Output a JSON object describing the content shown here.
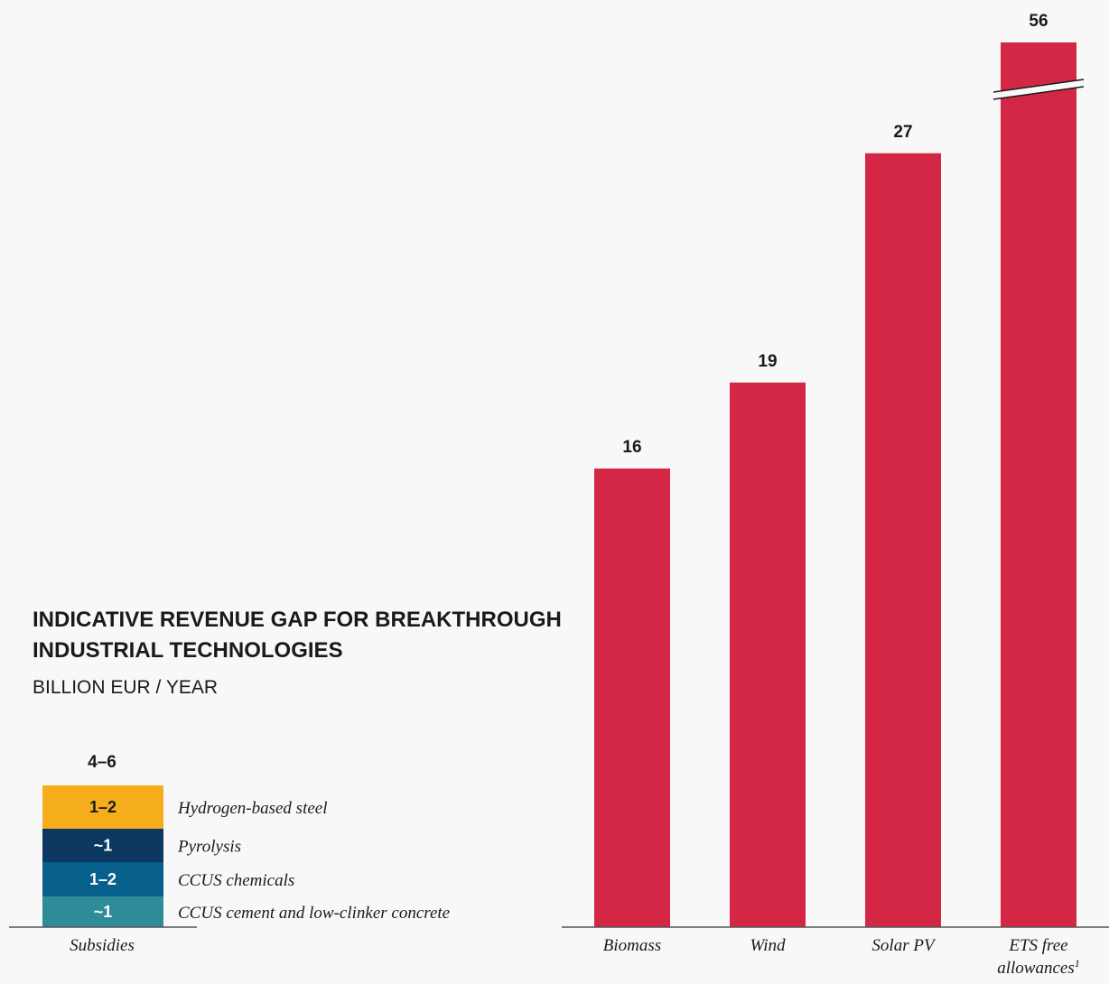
{
  "chart_data": {
    "type": "bar",
    "title_line1": "INDICATIVE REVENUE GAP FOR BREAKTHROUGH",
    "title_line2": "INDUSTRIAL TECHNOLOGIES",
    "subtitle": "BILLION EUR / YEAR",
    "subsidies": {
      "category": "Subsidies",
      "total_label": "4–6",
      "segments": [
        {
          "label": "~1",
          "name": "CCUS cement and low-clinker concrete",
          "color": "#2e8b98",
          "text_color": "#ffffff"
        },
        {
          "label": "1–2",
          "name": "CCUS chemicals",
          "color": "#075f8c",
          "text_color": "#ffffff"
        },
        {
          "label": "~1",
          "name": "Pyrolysis",
          "color": "#0c3761",
          "text_color": "#ffffff"
        },
        {
          "label": "1–2",
          "name": "Hydrogen-based steel",
          "color": "#f6ad1c",
          "text_color": "#1a1a1a"
        }
      ]
    },
    "categories": [
      "Biomass",
      "Wind",
      "Solar PV",
      "ETS free allowances"
    ],
    "category_superscripts": [
      "",
      "",
      "",
      "1"
    ],
    "values": [
      16,
      19,
      27,
      56
    ],
    "value_labels": [
      "16",
      "19",
      "27",
      "56"
    ],
    "broken_axis_bar_index": 3,
    "bar_color": "#d32745"
  }
}
